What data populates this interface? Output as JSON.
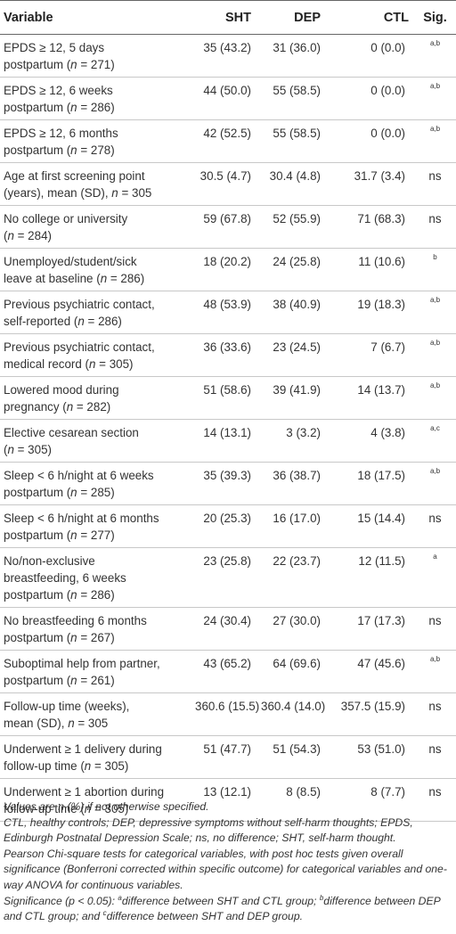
{
  "table": {
    "headers": [
      "Variable",
      "SHT",
      "DEP",
      "CTL",
      "Sig."
    ],
    "rows": [
      {
        "line1": "EPDS ≥ 12, 5 days",
        "line2_pre": "postpartum (",
        "n": "n",
        "line2_post": " = 271)",
        "sht": "35 (43.2)",
        "dep": "31 (36.0)",
        "ctl": "0 (0.0)",
        "sig": "a,b"
      },
      {
        "line1": "EPDS ≥ 12, 6 weeks",
        "line2_pre": "postpartum (",
        "n": "n",
        "line2_post": " = 286)",
        "sht": "44 (50.0)",
        "dep": "55 (58.5)",
        "ctl": "0 (0.0)",
        "sig": "a,b"
      },
      {
        "line1": "EPDS ≥ 12, 6 months",
        "line2_pre": "postpartum (",
        "n": "n",
        "line2_post": " = 278)",
        "sht": "42 (52.5)",
        "dep": "55 (58.5)",
        "ctl": "0 (0.0)",
        "sig": "a,b"
      },
      {
        "line1": "Age at first screening point",
        "line2_pre": "(years), mean (SD), ",
        "n": "n",
        "line2_post": " = 305",
        "sht": "30.5 (4.7)",
        "dep": "30.4 (4.8)",
        "ctl": "31.7 (3.4)",
        "sig": "ns"
      },
      {
        "line1": "No college or university",
        "line2_pre": "(",
        "n": "n",
        "line2_post": " = 284)",
        "sht": "59 (67.8)",
        "dep": "52 (55.9)",
        "ctl": "71 (68.3)",
        "sig": "ns"
      },
      {
        "line1": "Unemployed/student/sick",
        "line2_pre": "leave at baseline (",
        "n": "n",
        "line2_post": " = 286)",
        "sht": "18 (20.2)",
        "dep": "24 (25.8)",
        "ctl": "11 (10.6)",
        "sig": "b"
      },
      {
        "line1": "Previous psychiatric contact,",
        "line2_pre": "self-reported (",
        "n": "n",
        "line2_post": " = 286)",
        "sht": "48 (53.9)",
        "dep": "38 (40.9)",
        "ctl": "19 (18.3)",
        "sig": "a,b"
      },
      {
        "line1": "Previous psychiatric contact,",
        "line2_pre": "medical record (",
        "n": "n",
        "line2_post": " = 305)",
        "sht": "36 (33.6)",
        "dep": "23 (24.5)",
        "ctl": "7 (6.7)",
        "sig": "a,b"
      },
      {
        "line1": "Lowered mood during",
        "line2_pre": "pregnancy (",
        "n": "n",
        "line2_post": " = 282)",
        "sht": "51 (58.6)",
        "dep": "39 (41.9)",
        "ctl": "14 (13.7)",
        "sig": "a,b"
      },
      {
        "line1": "Elective cesarean section",
        "line2_pre": "(",
        "n": "n",
        "line2_post": " = 305)",
        "sht": "14 (13.1)",
        "dep": "3 (3.2)",
        "ctl": "4 (3.8)",
        "sig": "a,c"
      },
      {
        "line1": "Sleep < 6 h/night at 6 weeks",
        "line2_pre": "postpartum (",
        "n": "n",
        "line2_post": " = 285)",
        "sht": "35 (39.3)",
        "dep": "36 (38.7)",
        "ctl": "18 (17.5)",
        "sig": "a,b"
      },
      {
        "line1": "Sleep < 6 h/night at 6 months",
        "line2_pre": "postpartum (",
        "n": "n",
        "line2_post": " = 277)",
        "sht": "20 (25.3)",
        "dep": "16 (17.0)",
        "ctl": "15 (14.4)",
        "sig": "ns"
      },
      {
        "line1": "No/non-exclusive",
        "line1b": "breastfeeding, 6 weeks",
        "line2_pre": "postpartum (",
        "n": "n",
        "line2_post": " = 286)",
        "sht": "23 (25.8)",
        "dep": "22 (23.7)",
        "ctl": "12 (11.5)",
        "sig": "a"
      },
      {
        "line1": "No breastfeeding 6 months",
        "line2_pre": "postpartum (",
        "n": "n",
        "line2_post": " = 267)",
        "sht": "24 (30.4)",
        "dep": "27 (30.0)",
        "ctl": "17 (17.3)",
        "sig": "ns"
      },
      {
        "line1": "Suboptimal help from partner,",
        "line2_pre": "postpartum (",
        "n": "n",
        "line2_post": " = 261)",
        "sht": "43 (65.2)",
        "dep": "64 (69.6)",
        "ctl": "47 (45.6)",
        "sig": "a,b"
      },
      {
        "line1": "Follow-up time (weeks),",
        "line2_pre": "mean (SD), ",
        "n": "n",
        "line2_post": " = 305",
        "sht": "360.6 (15.5)",
        "dep": "360.4 (14.0)",
        "ctl": "357.5 (15.9)",
        "sig": "ns"
      },
      {
        "line1": "Underwent ≥ 1 delivery during",
        "line2_pre": "follow-up time (",
        "n": "n",
        "line2_post": " = 305)",
        "sht": "51 (47.7)",
        "dep": "51 (54.3)",
        "ctl": "53 (51.0)",
        "sig": "ns"
      },
      {
        "line1": "Underwent ≥ 1 abortion during",
        "line2_pre": "follow-up time (",
        "n": "n",
        "line2_post": " = 305)",
        "sht": "13 (12.1)",
        "dep": "8 (8.5)",
        "ctl": "8 (7.7)",
        "sig": "ns"
      }
    ]
  },
  "notes": {
    "values": "Values are n (%) if not otherwise specified.",
    "abbrev": "CTL, healthy controls; DEP, depressive symptoms without self-harm thoughts; EPDS, Edinburgh Postnatal Depression Scale; ns, no difference; SHT, self-harm thought.",
    "tests": "Pearson Chi-square tests for categorical variables, with post hoc tests given overall significance (Bonferroni corrected within specific outcome) for categorical variables and one-way ANOVA for continuous variables.",
    "sig_pre": "Significance (p < 0.05): ",
    "sig_a_mark": "a",
    "sig_a": "difference between SHT and CTL group; ",
    "sig_b_mark": "b",
    "sig_b": "difference between DEP and CTL group; and ",
    "sig_c_mark": "c",
    "sig_c": "difference between SHT and DEP group."
  }
}
